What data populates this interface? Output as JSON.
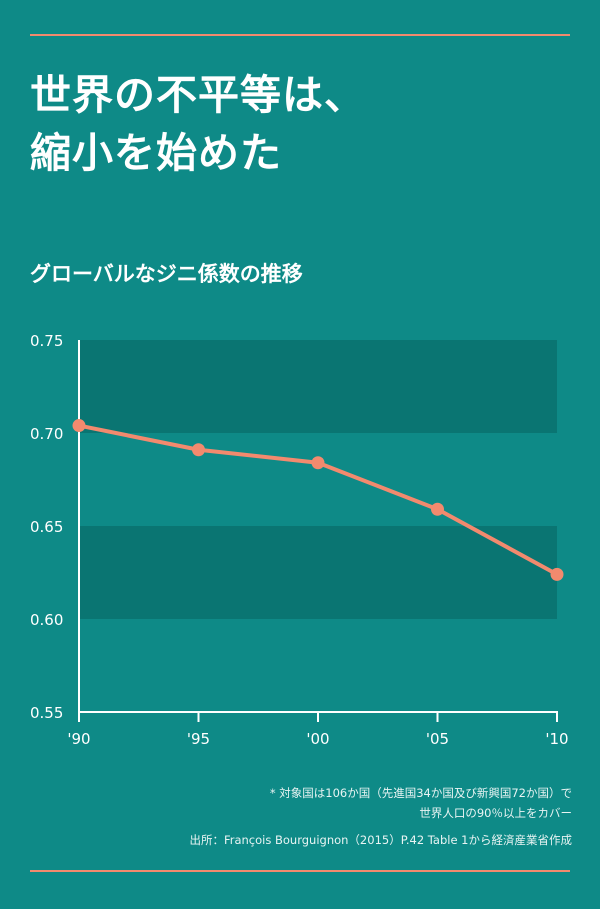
{
  "colors": {
    "background": "#0e8a87",
    "band": "#0a7572",
    "line": "#f28a6e",
    "rule": "#f28a6e",
    "text": "#ffffff"
  },
  "header": {
    "title_line1": "世界の不平等は、",
    "title_line2": "縮小を始めた"
  },
  "chart_data": {
    "type": "line",
    "title": "グローバルなジニ係数の推移",
    "categories": [
      "'90",
      "'95",
      "'00",
      "'05",
      "'10"
    ],
    "series": [
      {
        "values": [
          0.704,
          0.691,
          0.684,
          0.659,
          0.624
        ]
      }
    ],
    "ylim": [
      0.55,
      0.75
    ],
    "yticks": [
      "0.75",
      "0.70",
      "0.65",
      "0.60",
      "0.55"
    ],
    "xlabel": "",
    "ylabel": "",
    "shaded_bands": [
      [
        0.7,
        0.75
      ],
      [
        0.6,
        0.65
      ]
    ],
    "grid": false
  },
  "footnotes": {
    "note_line1": "* 対象国は106か国（先進国34か国及び新興国72か国）で",
    "note_line2": "世界人口の90％以上をカバー",
    "source": "出所：François Bourguignon（2015）P.42 Table 1から経済産業省作成"
  }
}
